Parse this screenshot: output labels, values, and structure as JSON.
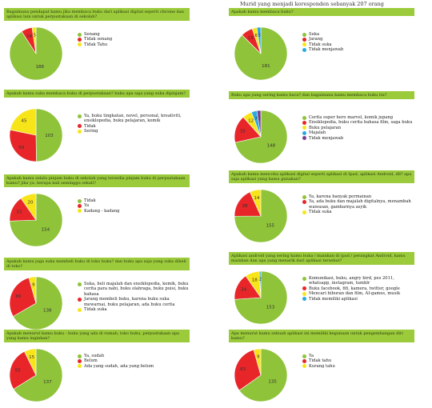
{
  "header": "Murid yang menjadi koresponden sebanyak 207 orang",
  "palette": [
    "#8fc33a",
    "#e82528",
    "#f7e51a",
    "#2aa9e0",
    "#7b3e95"
  ],
  "chart_data": [
    {
      "type": "pie",
      "question": "Bagaimana pendapat kamu jika membaca buku dari aplikasi digital seperti chrome dan aplikasi lain untuk perpustakaan di sekolah?",
      "labels": [
        "Senang",
        "Tidak senang",
        "Tidak Tahu"
      ],
      "values": [
        188,
        14,
        5
      ],
      "data_labels": [
        "188",
        "14",
        "5"
      ]
    },
    {
      "type": "pie",
      "question": "Apakah kamu suka membaca buku di perpustakaan? buku apa saja yang suka dipinjam?",
      "labels": [
        "Ya, buku tingkatan, novel, personal, kreativiti, ensiklopedia, buku pelajaran, komik",
        "Tidak",
        "Sering"
      ],
      "values": [
        103,
        59,
        45
      ],
      "data_labels": [
        "103",
        "59",
        "45"
      ]
    },
    {
      "type": "pie",
      "question": "Apakah kamu selalu pinjam buku di sekolah yang tersedia pinjam buku di perpustakaan kamu? jika ya, berapa kali seminggu sekali?",
      "labels": [
        "Tidak",
        "Ya",
        "Kadang - kadang"
      ],
      "values": [
        154,
        33,
        20
      ],
      "data_labels": [
        "154",
        "33",
        "20"
      ]
    },
    {
      "type": "pie",
      "question": "Apakah kamu juga suka membeli buku di toko buku? dan buku apa saja yang suka dibeli di toko?",
      "labels": [
        "Suka, beli majalah dan ensiklopedia, komik, buku cerita para nabi, buku olahraga, buku puisi, buku bahasa",
        "Jarang membeli buku, karena buku suka mewarnai, buku pelajaran, ada buku cerita",
        "Tidak suka"
      ],
      "values": [
        138,
        60,
        9
      ],
      "data_labels": [
        "138",
        "60",
        "9"
      ]
    },
    {
      "type": "pie",
      "question": "Apakah menurut kamu buku - buku yang ada di rumah, toko buku, perpustakaan apa yang kamu inginkan?",
      "labels": [
        "Ya, sudah",
        "Belum",
        "Ada yang sudah, ada yang belum"
      ],
      "values": [
        137,
        55,
        15
      ],
      "data_labels": [
        "137",
        "55",
        "15"
      ]
    },
    {
      "type": "pie",
      "question": "Apakah kamu membaca buku?",
      "labels": [
        "Suka",
        "Jarang",
        "Tidak suka",
        "Tidak menjawab"
      ],
      "values": [
        181,
        15,
        6,
        5
      ],
      "data_labels": [
        "181",
        "15",
        "6",
        "5"
      ]
    },
    {
      "type": "pie",
      "question": "Buku apa yang sering kamu baca? dan bagaimana kamu membaca buku itu?",
      "labels": [
        "Cerita super hero marvel, komik jepang",
        "Ensiklopedia, buku cerita bahasa film, saga buku",
        "Buku pelajaran",
        "Majalah",
        "Tidak menjawab"
      ],
      "values": [
        148,
        35,
        12,
        7,
        5
      ],
      "data_labels": [
        "148",
        "35",
        "12",
        "7",
        "5"
      ]
    },
    {
      "type": "pie",
      "question": "Apakah kamu mencoba aplikasi digital seperti aplikasi di Ipad, aplikasi Android, dll? apa saja aplikasi yang kamu gunakan?",
      "labels": [
        "Ya, karena banyak permainan",
        "Ya, ada buku dan majalah digitalnya, menambah wawasan, gambarnya asyik",
        "Tidak suka"
      ],
      "values": [
        155,
        38,
        14
      ],
      "data_labels": [
        "155",
        "38",
        "14"
      ]
    },
    {
      "type": "pie",
      "question": "Aplikasi android yang sering kamu buka / mainkan di ipad / perangkat Android, kamu mainkan dan apa yang menarik dari aplikasi tersebut?",
      "labels": [
        "Komunikasi, buku, angry bird, pes 2011, whatsapp, instagram, tumblr",
        "Buku facebook, fifi, kamera, twitter, google",
        "Mencari hiburan dan film, AI-games, musik",
        "Tidak memiliki aplikasi"
      ],
      "values": [
        153,
        34,
        18,
        2
      ],
      "data_labels": [
        "153",
        "34",
        "18",
        "2"
      ]
    },
    {
      "type": "pie",
      "question": "Apa menurut kamu sebuah aplikasi ini memiliki kegunaan untuk pengembangan diri kamu?",
      "labels": [
        "Ya",
        "Tidak tahu",
        "Kurang tahu"
      ],
      "values": [
        135,
        63,
        9
      ],
      "data_labels": [
        "135",
        "63",
        "9"
      ]
    }
  ]
}
